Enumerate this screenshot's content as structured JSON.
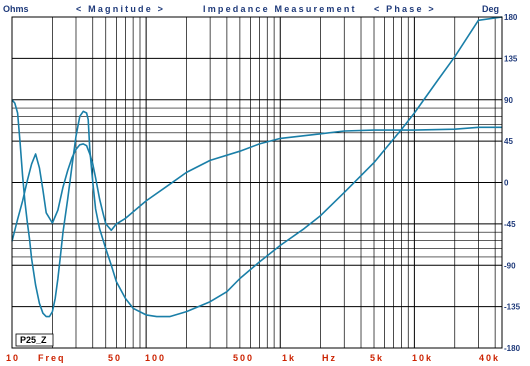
{
  "header": {
    "left_unit": "Ohms",
    "right_unit": "Deg",
    "magnitude": "< Magnitude >",
    "title": "Impedance Measurement",
    "phase": "< Phase >"
  },
  "tag": "P25_Z",
  "colors": {
    "header": "#1f3a7a",
    "xtick": "#cc2200",
    "grid": "#000000",
    "curve": "#1a7fa8"
  },
  "chart_data": {
    "type": "line",
    "title": "Impedance Measurement",
    "x_scale": "log",
    "xlim": [
      10,
      45000
    ],
    "x_tick_labels": [
      "10",
      "Freq",
      "50",
      "100",
      "500",
      "1k",
      "Hz",
      "5k",
      "10k",
      "40k"
    ],
    "y_left": {
      "label": "Ohms",
      "tick_labels": [
        "",
        "",
        "",
        ""
      ],
      "lim": [
        0,
        1
      ]
    },
    "y_right": {
      "label": "Deg",
      "lim": [
        -180,
        180
      ],
      "ticks": [
        180,
        135,
        90,
        45,
        0,
        -45,
        -90,
        -135,
        -180
      ]
    },
    "grid": true,
    "series": [
      {
        "axis": "left-normalized",
        "x": [
          10,
          10.5,
          11,
          11.5,
          12,
          12.5,
          13,
          13.5,
          14,
          15,
          16,
          17,
          18,
          19,
          20,
          21,
          22,
          23,
          24,
          26,
          28,
          30,
          32,
          34,
          36,
          37,
          38,
          40,
          42,
          45,
          50,
          55,
          60,
          70,
          80,
          100,
          120,
          150,
          200,
          300,
          400,
          500,
          700,
          1000,
          1500,
          2000,
          3000,
          5000,
          8000,
          10000,
          15000,
          20000,
          30000,
          45000
        ],
        "y": [
          0.75,
          0.74,
          0.71,
          0.62,
          0.52,
          0.44,
          0.38,
          0.33,
          0.27,
          0.19,
          0.135,
          0.105,
          0.095,
          0.095,
          0.11,
          0.15,
          0.21,
          0.28,
          0.35,
          0.45,
          0.55,
          0.64,
          0.7,
          0.715,
          0.71,
          0.69,
          0.6,
          0.5,
          0.42,
          0.36,
          0.3,
          0.25,
          0.2,
          0.15,
          0.12,
          0.1,
          0.095,
          0.095,
          0.11,
          0.14,
          0.17,
          0.21,
          0.26,
          0.31,
          0.36,
          0.4,
          0.47,
          0.56,
          0.66,
          0.71,
          0.81,
          0.88,
          0.99,
          1.13
        ]
      },
      {
        "axis": "right",
        "x": [
          10,
          11,
          12,
          13,
          14,
          15,
          16,
          17,
          18,
          20,
          22,
          24,
          26,
          28,
          30,
          32,
          34,
          36,
          38,
          40,
          42,
          45,
          48,
          50,
          55,
          60,
          70,
          80,
          100,
          150,
          200,
          300,
          500,
          700,
          1000,
          2000,
          3000,
          5000,
          10000,
          20000,
          30000,
          45000
        ],
        "y": [
          -64,
          -40,
          -20,
          2,
          20,
          31,
          16,
          -8,
          -33,
          -44,
          -30,
          -5,
          13,
          27,
          36,
          41,
          42,
          40,
          31,
          20,
          5,
          -18,
          -35,
          -45,
          -52,
          -45,
          -39,
          -32,
          -20,
          -2,
          11,
          24,
          34,
          42,
          48,
          53,
          56,
          57,
          57,
          58,
          60,
          60
        ]
      }
    ]
  }
}
